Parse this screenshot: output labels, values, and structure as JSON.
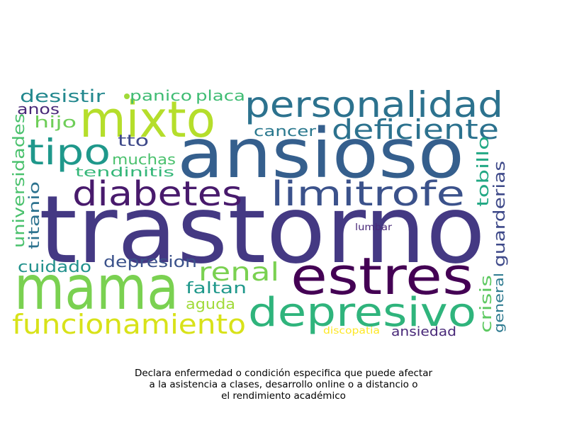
{
  "caption_lines": [
    "Declara enfermedad o condición especifica que puede afectar",
    "a la asistencia a clases, desarrollo online o a distancio o",
    "el rendimiento académico"
  ],
  "words": [
    {
      "text": "trastorno",
      "color": "#443983"
    },
    {
      "text": "ansioso",
      "color": "#355f8d"
    },
    {
      "text": "mama",
      "color": "#7ad151"
    },
    {
      "text": "mixto",
      "color": "#b5de2b"
    },
    {
      "text": "estres",
      "color": "#440154"
    },
    {
      "text": "depresivo",
      "color": "#2fb47c"
    },
    {
      "text": "personalidad",
      "color": "#2c728e"
    },
    {
      "text": "diabetes",
      "color": "#481a6c"
    },
    {
      "text": "limitrofe",
      "color": "#3b528b"
    },
    {
      "text": "tipo",
      "color": "#1f988b"
    },
    {
      "text": "deficiente",
      "color": "#2c728e"
    },
    {
      "text": "funcionamiento",
      "color": "#d8e219"
    },
    {
      "text": "renal",
      "color": "#7ad151"
    },
    {
      "text": "desistir",
      "color": "#23888e"
    },
    {
      "text": "panico",
      "color": "#3fbc73"
    },
    {
      "text": "placa",
      "color": "#3fbc73"
    },
    {
      "text": "anos",
      "color": "#482878"
    },
    {
      "text": "hijo",
      "color": "#6ece58"
    },
    {
      "text": "cancer",
      "color": "#2a788e"
    },
    {
      "text": "tto",
      "color": "#3e4989"
    },
    {
      "text": "muchas",
      "color": "#4ac16d"
    },
    {
      "text": "tendinitis",
      "color": "#35b779"
    },
    {
      "text": "universidades",
      "color": "#4ac16d"
    },
    {
      "text": "titanio",
      "color": "#2c728e"
    },
    {
      "text": "tobillo",
      "color": "#22a884"
    },
    {
      "text": "guarderias",
      "color": "#3e4989"
    },
    {
      "text": "lumbar",
      "color": "#482878"
    },
    {
      "text": "cuidado",
      "color": "#21918c"
    },
    {
      "text": "depresion",
      "color": "#3b528b"
    },
    {
      "text": "faltan",
      "color": "#1f988b"
    },
    {
      "text": "aguda",
      "color": "#a0da39"
    },
    {
      "text": "crisis",
      "color": "#5ec962"
    },
    {
      "text": "general",
      "color": "#2a788e"
    },
    {
      "text": "discopatia",
      "color": "#fde725"
    },
    {
      "text": "ansiedad",
      "color": "#482878"
    }
  ],
  "dot_colors": [
    "#a0da39",
    "#31688e"
  ]
}
